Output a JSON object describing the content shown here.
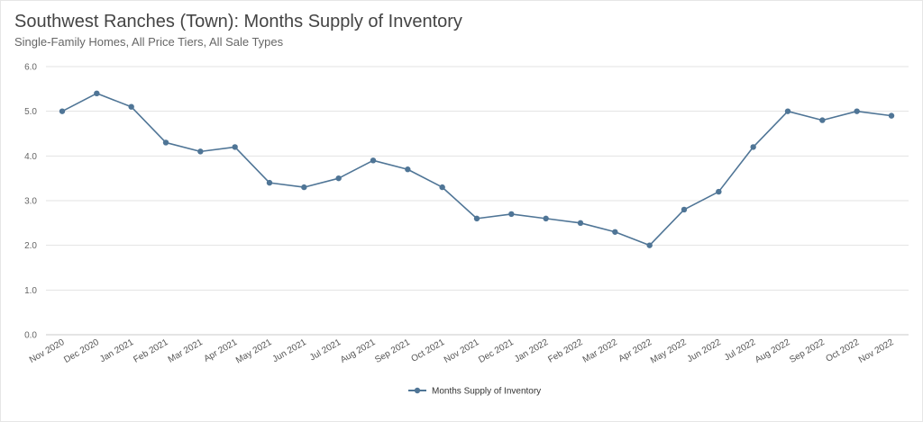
{
  "chart_data": {
    "type": "line",
    "title": "Southwest Ranches (Town): Months Supply of Inventory",
    "subtitle": "Single-Family Homes, All Price Tiers, All Sale Types",
    "xlabel": "",
    "ylabel": "",
    "ylim": [
      0,
      6
    ],
    "yticks": [
      "0.0",
      "1.0",
      "2.0",
      "3.0",
      "4.0",
      "5.0",
      "6.0"
    ],
    "grid": true,
    "legend_position": "bottom",
    "categories": [
      "Nov 2020",
      "Dec 2020",
      "Jan 2021",
      "Feb 2021",
      "Mar 2021",
      "Apr 2021",
      "May 2021",
      "Jun 2021",
      "Jul 2021",
      "Aug 2021",
      "Sep 2021",
      "Oct 2021",
      "Nov 2021",
      "Dec 2021",
      "Jan 2022",
      "Feb 2022",
      "Mar 2022",
      "Apr 2022",
      "May 2022",
      "Jun 2022",
      "Jul 2022",
      "Aug 2022",
      "Sep 2022",
      "Oct 2022",
      "Nov 2022"
    ],
    "series": [
      {
        "name": "Months Supply of Inventory",
        "color": "#4f7596",
        "values": [
          5.0,
          5.4,
          5.1,
          4.3,
          4.1,
          4.2,
          3.4,
          3.3,
          3.5,
          3.9,
          3.7,
          3.3,
          2.6,
          2.7,
          2.6,
          2.5,
          2.3,
          2.0,
          2.8,
          3.2,
          4.2,
          5.0,
          4.8,
          5.0,
          4.9
        ]
      }
    ]
  }
}
